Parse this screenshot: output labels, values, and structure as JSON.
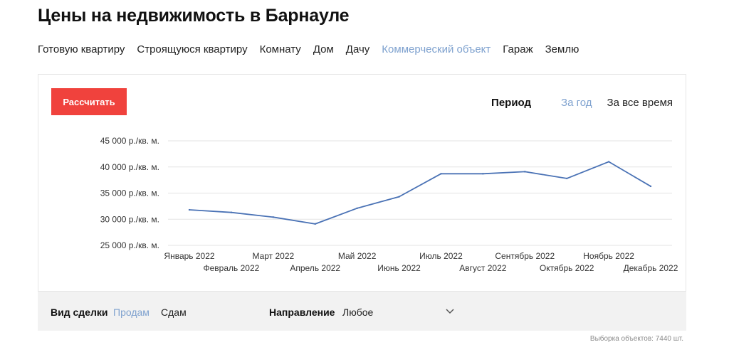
{
  "page": {
    "title": "Цены на недвижимость в Барнауле"
  },
  "property_tabs": [
    {
      "label": "Готовую квартиру",
      "active": false
    },
    {
      "label": "Строящуюся квартиру",
      "active": false
    },
    {
      "label": "Комнату",
      "active": false
    },
    {
      "label": "Дом",
      "active": false
    },
    {
      "label": "Дачу",
      "active": false
    },
    {
      "label": "Коммерческий объект",
      "active": true
    },
    {
      "label": "Гараж",
      "active": false
    },
    {
      "label": "Землю",
      "active": false
    }
  ],
  "calc_button": {
    "label": "Рассчитать"
  },
  "period": {
    "label": "Период",
    "options": [
      {
        "label": "За год",
        "active": true
      },
      {
        "label": "За все время",
        "active": false
      }
    ]
  },
  "colors": {
    "accent": "#7fa2cf",
    "button": "#f0423d",
    "line": "#4a72b5",
    "grid": "#e3e3e3"
  },
  "chart_data": {
    "type": "line",
    "x": [
      "Январь 2022",
      "Февраль 2022",
      "Март 2022",
      "Апрель 2022",
      "Май 2022",
      "Июнь 2022",
      "Июль 2022",
      "Август 2022",
      "Сентябрь 2022",
      "Октябрь 2022",
      "Ноябрь 2022",
      "Декабрь 2022"
    ],
    "series": [
      {
        "values": [
          31800,
          31300,
          30400,
          29100,
          32100,
          34300,
          38700,
          38700,
          39100,
          37800,
          41000,
          36300
        ]
      }
    ],
    "y_ticks": [
      25000,
      30000,
      35000,
      40000,
      45000
    ],
    "y_tick_labels": [
      "25 000 р./кв. м.",
      "30 000 р./кв. м.",
      "35 000 р./кв. м.",
      "40 000 р./кв. м.",
      "45 000 р./кв. м."
    ],
    "ylim": [
      25000,
      45000
    ],
    "grid": true,
    "legend": "none"
  },
  "filters": {
    "deal_label": "Вид сделки",
    "deal_options": [
      {
        "label": "Продам",
        "active": true
      },
      {
        "label": "Сдам",
        "active": false
      }
    ],
    "direction_label": "Направление",
    "direction_value": "Любое",
    "chevron_icon": "chevron-down-icon"
  },
  "sample_count": "Выборка объектов: 7440 шт."
}
